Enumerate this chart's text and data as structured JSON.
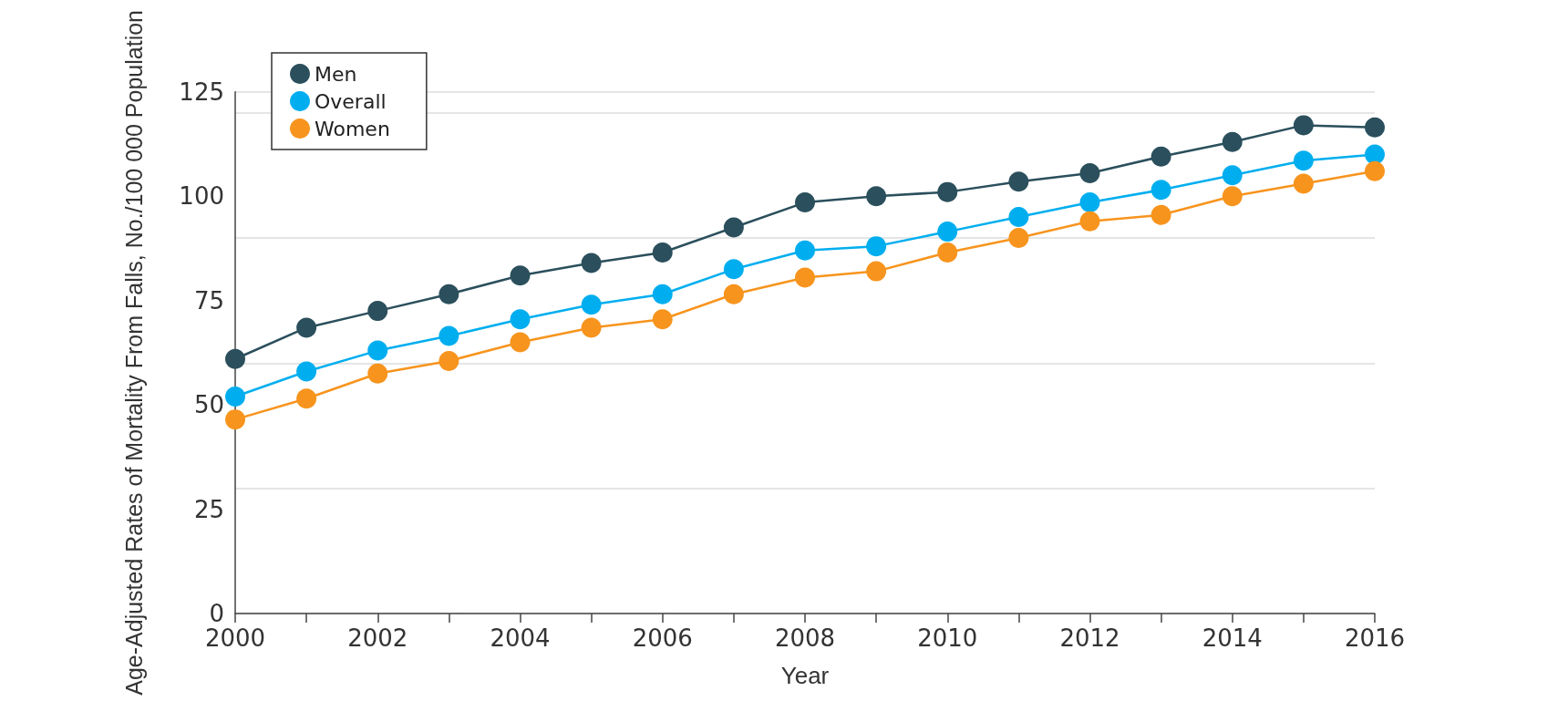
{
  "chart_data": {
    "type": "line",
    "xlabel": "Year",
    "ylabel": "Age-Adjusted Rates of Mortality From Falls, No./100 000 Population",
    "x": [
      2000,
      2001,
      2002,
      2003,
      2004,
      2005,
      2006,
      2007,
      2008,
      2009,
      2010,
      2011,
      2012,
      2013,
      2014,
      2015,
      2016
    ],
    "series": [
      {
        "name": "Men",
        "color": "#2b4f5c",
        "values": [
          61,
          68.5,
          72.5,
          76.5,
          81,
          84,
          86.5,
          92.5,
          98.5,
          100,
          101,
          103.5,
          105.5,
          109.5,
          113,
          117,
          116.5
        ]
      },
      {
        "name": "Overall",
        "color": "#00aeef",
        "values": [
          52,
          58,
          63,
          66.5,
          70.5,
          74,
          76.5,
          82.5,
          87,
          88,
          91.5,
          95,
          98.5,
          101.5,
          105,
          108.5,
          110
        ]
      },
      {
        "name": "Women",
        "color": "#f7941d",
        "values": [
          46.5,
          51.5,
          57.5,
          60.5,
          65,
          68.5,
          70.5,
          76.5,
          80.5,
          82,
          86.5,
          90,
          94,
          95.5,
          100,
          103,
          106
        ]
      }
    ],
    "xlim": [
      2000,
      2016
    ],
    "xticks": [
      2000,
      {
        "value": 2001,
        "label": null
      },
      2002,
      {
        "value": 2003,
        "label": null
      },
      2004,
      {
        "value": 2005,
        "label": null
      },
      2006,
      {
        "value": 2007,
        "label": null
      },
      2008,
      {
        "value": 2009,
        "label": null
      },
      2010,
      {
        "value": 2011,
        "label": null
      },
      2012,
      {
        "value": 2013,
        "label": null
      },
      2014,
      {
        "value": 2015,
        "label": null
      },
      2016
    ],
    "ylim": [
      0,
      125
    ],
    "yticks": [
      0,
      25,
      50,
      75,
      100,
      125
    ],
    "grid": "y",
    "legend": "top left",
    "marker": "circle",
    "line_style": "solid"
  }
}
